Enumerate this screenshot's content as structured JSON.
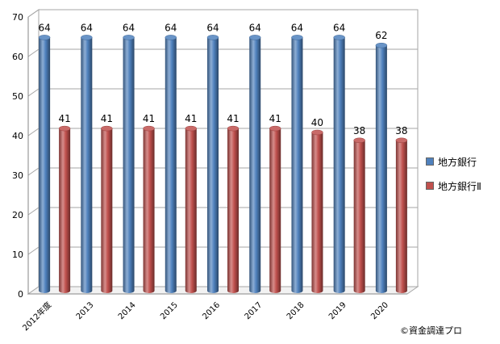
{
  "chart_data": {
    "type": "bar",
    "style": "3d-cylinder",
    "categories": [
      "2012年度",
      "2013",
      "2014",
      "2015",
      "2016",
      "2017",
      "2018",
      "2019",
      "2020"
    ],
    "series": [
      {
        "name": "地方銀行",
        "color": "#4F81BD",
        "values": [
          64,
          64,
          64,
          64,
          64,
          64,
          64,
          64,
          62
        ]
      },
      {
        "name": "地方銀行Ⅱ",
        "color": "#C0504D",
        "values": [
          41,
          41,
          41,
          41,
          41,
          41,
          40,
          38,
          38
        ]
      }
    ],
    "yticks": [
      "0",
      "10",
      "20",
      "30",
      "40",
      "50",
      "60",
      "70"
    ],
    "ylim": [
      0,
      70
    ],
    "grid": true,
    "legend_position": "right",
    "title": "",
    "xlabel": "",
    "ylabel": ""
  },
  "credit": "©資金調達プロ"
}
